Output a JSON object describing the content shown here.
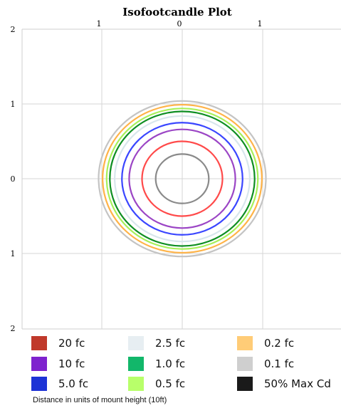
{
  "chart_data": {
    "type": "contour",
    "title": "Isofootcandle Plot",
    "top_tick_labels": [
      "1",
      "0",
      "1"
    ],
    "left_tick_labels": [
      "2",
      "1",
      "0",
      "1",
      "2"
    ],
    "x_range": [
      -2,
      2
    ],
    "y_range": [
      -2,
      2
    ],
    "grid": true,
    "series": [
      {
        "name": "20 fc",
        "color": "#c0392b",
        "radius": 0.33,
        "stroke": "#8a8a8a"
      },
      {
        "name": "10 fc",
        "color": "#7e22ce",
        "radius": 0.5,
        "stroke": "#ff4a4a"
      },
      {
        "name": "5.0 fc",
        "color": "#1d33d6",
        "radius": 0.66,
        "stroke": "#9b45c5"
      },
      {
        "name": "2.5 fc",
        "color": "#e7eef2",
        "radius": 0.75,
        "stroke": "#3a46ff"
      },
      {
        "name": "1.0 fc",
        "color": "#12b76a",
        "radius": 0.84,
        "stroke": "#d8e6ec"
      },
      {
        "name": "0.5 fc",
        "color": "#b8ff6a",
        "radius": 0.9,
        "stroke": "#0f8f23"
      },
      {
        "name": "0.2 fc",
        "color": "#ffcc77",
        "radius": 0.94,
        "stroke": "#a8f05a"
      },
      {
        "name": "0.1 fc",
        "color": "#cfcfcf",
        "radius": 0.99,
        "stroke": "#ffb347"
      },
      {
        "name": "50% Max Cd",
        "color": "#1a1a1a",
        "radius": 1.04,
        "stroke": "#c4c4c4"
      }
    ],
    "xlabel": "Distance in units of mount height (10ft)"
  }
}
